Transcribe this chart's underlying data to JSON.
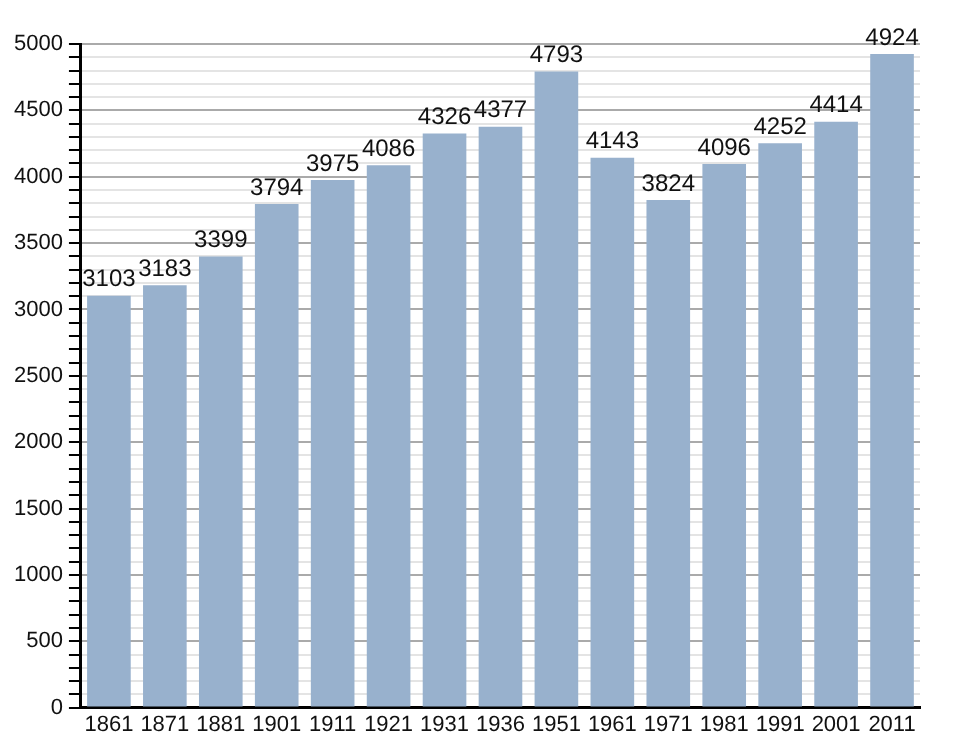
{
  "chart_data": {
    "type": "bar",
    "categories": [
      "1861",
      "1871",
      "1881",
      "1901",
      "1911",
      "1921",
      "1931",
      "1936",
      "1951",
      "1961",
      "1971",
      "1981",
      "1991",
      "2001",
      "2011"
    ],
    "values": [
      3103,
      3183,
      3399,
      3794,
      3975,
      4086,
      4326,
      4377,
      4793,
      4143,
      3824,
      4096,
      4252,
      4414,
      4924
    ],
    "color": "#98b1cd",
    "ylim": [
      0,
      5000
    ],
    "yticks": [
      0,
      {
        "value": 100,
        "label": null
      },
      {
        "value": 200,
        "label": null
      },
      {
        "value": 300,
        "label": null
      },
      {
        "value": 400,
        "label": null
      },
      500,
      {
        "value": 600,
        "label": null
      },
      {
        "value": 700,
        "label": null
      },
      {
        "value": 800,
        "label": null
      },
      {
        "value": 900,
        "label": null
      },
      1000,
      {
        "value": 1100,
        "label": null
      },
      {
        "value": 1200,
        "label": null
      },
      {
        "value": 1300,
        "label": null
      },
      {
        "value": 1400,
        "label": null
      },
      1500,
      {
        "value": 1600,
        "label": null
      },
      {
        "value": 1700,
        "label": null
      },
      {
        "value": 1800,
        "label": null
      },
      {
        "value": 1900,
        "label": null
      },
      2000,
      {
        "value": 2100,
        "label": null
      },
      {
        "value": 2200,
        "label": null
      },
      {
        "value": 2300,
        "label": null
      },
      {
        "value": 2400,
        "label": null
      },
      2500,
      {
        "value": 2600,
        "label": null
      },
      {
        "value": 2700,
        "label": null
      },
      {
        "value": 2800,
        "label": null
      },
      {
        "value": 2900,
        "label": null
      },
      3000,
      {
        "value": 3100,
        "label": null
      },
      {
        "value": 3200,
        "label": null
      },
      {
        "value": 3300,
        "label": null
      },
      {
        "value": 3400,
        "label": null
      },
      3500,
      {
        "value": 3600,
        "label": null
      },
      {
        "value": 3700,
        "label": null
      },
      {
        "value": 3800,
        "label": null
      },
      {
        "value": 3900,
        "label": null
      },
      4000,
      {
        "value": 4100,
        "label": null
      },
      {
        "value": 4200,
        "label": null
      },
      {
        "value": 4300,
        "label": null
      },
      {
        "value": 4400,
        "label": null
      },
      4500,
      {
        "value": 4600,
        "label": null
      },
      {
        "value": 4700,
        "label": null
      },
      {
        "value": 4800,
        "label": null
      },
      {
        "value": 4900,
        "label": null
      },
      5000
    ],
    "grid": "y",
    "data_labels": true
  }
}
